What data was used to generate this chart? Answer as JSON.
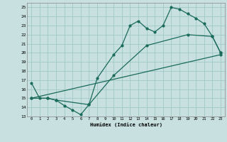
{
  "xlabel": "Humidex (Indice chaleur)",
  "bg_color": "#c8e0e0",
  "grid_color": "#a0c8c8",
  "line_color": "#1a6b5a",
  "xlim": [
    -0.5,
    23.5
  ],
  "ylim": [
    13,
    25.5
  ],
  "xticks": [
    0,
    1,
    2,
    3,
    4,
    5,
    6,
    7,
    8,
    9,
    10,
    11,
    12,
    13,
    14,
    15,
    16,
    17,
    18,
    19,
    20,
    21,
    22,
    23
  ],
  "yticks": [
    13,
    14,
    15,
    16,
    17,
    18,
    19,
    20,
    21,
    22,
    23,
    24,
    25
  ],
  "line1_x": [
    0,
    1,
    2,
    3,
    4,
    5,
    6,
    7,
    8,
    10,
    11,
    12,
    13,
    14,
    15,
    16,
    17,
    18,
    19,
    20,
    21,
    22,
    23
  ],
  "line1_y": [
    16.7,
    15.0,
    15.0,
    14.8,
    14.2,
    13.7,
    13.2,
    14.3,
    17.2,
    19.8,
    20.8,
    23.0,
    23.5,
    22.7,
    22.3,
    23.0,
    25.0,
    24.8,
    24.3,
    23.8,
    23.2,
    21.8,
    20.0
  ],
  "line2_x": [
    0,
    2,
    3,
    7,
    10,
    14,
    19,
    22,
    23
  ],
  "line2_y": [
    15.0,
    15.0,
    14.8,
    14.3,
    17.5,
    20.8,
    22.0,
    21.8,
    20.0
  ],
  "line3_x": [
    0,
    23
  ],
  "line3_y": [
    15.0,
    19.8
  ]
}
